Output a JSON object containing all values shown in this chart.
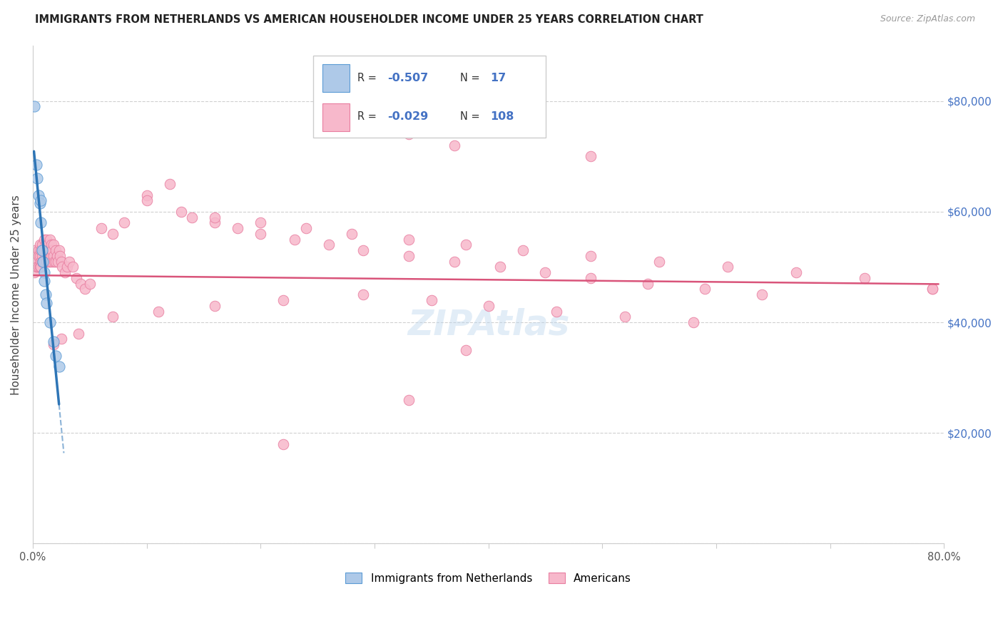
{
  "title": "IMMIGRANTS FROM NETHERLANDS VS AMERICAN HOUSEHOLDER INCOME UNDER 25 YEARS CORRELATION CHART",
  "source": "Source: ZipAtlas.com",
  "ylabel": "Householder Income Under 25 years",
  "xlim": [
    0.0,
    0.8
  ],
  "ylim": [
    0,
    90000
  ],
  "yticks": [
    0,
    20000,
    40000,
    60000,
    80000
  ],
  "ytick_labels_right": [
    "",
    "$20,000",
    "$40,000",
    "$60,000",
    "$80,000"
  ],
  "xtick_positions": [
    0.0,
    0.1,
    0.2,
    0.3,
    0.4,
    0.5,
    0.6,
    0.7,
    0.8
  ],
  "xtick_labels": [
    "0.0%",
    "",
    "",
    "",
    "",
    "",
    "",
    "",
    "80.0%"
  ],
  "blue_fill_color": "#aec9e8",
  "blue_edge_color": "#5b9bd5",
  "pink_fill_color": "#f7b8cb",
  "pink_edge_color": "#e87ea0",
  "blue_line_color": "#2e75b6",
  "pink_line_color": "#d9547a",
  "right_tick_color": "#4472c4",
  "legend_blue_r": "-0.507",
  "legend_blue_n": "17",
  "legend_pink_r": "-0.029",
  "legend_pink_n": "108",
  "watermark_text": "ZIPAtlas",
  "bottom_legend": [
    "Immigrants from Netherlands",
    "Americans"
  ],
  "blue_scatter_x": [
    0.001,
    0.003,
    0.004,
    0.005,
    0.006,
    0.007,
    0.007,
    0.008,
    0.009,
    0.01,
    0.01,
    0.011,
    0.012,
    0.015,
    0.018,
    0.02,
    0.023
  ],
  "blue_scatter_y": [
    79000,
    68500,
    66000,
    63000,
    61500,
    62000,
    58000,
    53000,
    51000,
    49000,
    47500,
    45000,
    43500,
    40000,
    36500,
    34000,
    32000
  ],
  "pink_scatter_x": [
    0.001,
    0.002,
    0.002,
    0.003,
    0.003,
    0.004,
    0.004,
    0.004,
    0.005,
    0.005,
    0.005,
    0.006,
    0.006,
    0.006,
    0.007,
    0.007,
    0.007,
    0.008,
    0.008,
    0.008,
    0.009,
    0.009,
    0.01,
    0.01,
    0.01,
    0.011,
    0.011,
    0.012,
    0.012,
    0.012,
    0.013,
    0.013,
    0.014,
    0.014,
    0.015,
    0.015,
    0.015,
    0.016,
    0.016,
    0.017,
    0.017,
    0.018,
    0.018,
    0.019,
    0.02,
    0.02,
    0.021,
    0.022,
    0.023,
    0.024,
    0.025,
    0.026,
    0.028,
    0.03,
    0.032,
    0.035,
    0.038,
    0.042,
    0.046,
    0.05,
    0.06,
    0.07,
    0.08,
    0.1,
    0.12,
    0.14,
    0.16,
    0.18,
    0.2,
    0.23,
    0.26,
    0.29,
    0.33,
    0.37,
    0.41,
    0.45,
    0.49,
    0.54,
    0.59,
    0.64,
    0.1,
    0.13,
    0.16,
    0.2,
    0.24,
    0.28,
    0.33,
    0.38,
    0.43,
    0.49,
    0.55,
    0.61,
    0.67,
    0.73,
    0.79,
    0.35,
    0.4,
    0.46,
    0.52,
    0.58,
    0.29,
    0.22,
    0.16,
    0.11,
    0.07,
    0.04,
    0.025,
    0.018
  ],
  "pink_scatter_y": [
    49000,
    53000,
    52000,
    51000,
    50000,
    52000,
    51000,
    50000,
    53000,
    52000,
    50000,
    54000,
    52000,
    50000,
    53000,
    51000,
    50000,
    54000,
    52000,
    51000,
    53000,
    51000,
    55000,
    53000,
    51000,
    54000,
    52000,
    55000,
    53000,
    51000,
    54000,
    52000,
    53000,
    51000,
    55000,
    53000,
    51000,
    54000,
    52000,
    53000,
    51000,
    54000,
    52000,
    51000,
    53000,
    51000,
    52000,
    51000,
    53000,
    52000,
    51000,
    50000,
    49000,
    50000,
    51000,
    50000,
    48000,
    47000,
    46000,
    47000,
    57000,
    56000,
    58000,
    63000,
    65000,
    59000,
    58000,
    57000,
    56000,
    55000,
    54000,
    53000,
    52000,
    51000,
    50000,
    49000,
    48000,
    47000,
    46000,
    45000,
    62000,
    60000,
    59000,
    58000,
    57000,
    56000,
    55000,
    54000,
    53000,
    52000,
    51000,
    50000,
    49000,
    48000,
    46000,
    44000,
    43000,
    42000,
    41000,
    40000,
    45000,
    44000,
    43000,
    42000,
    41000,
    38000,
    37000,
    36000
  ],
  "pink_outlier_x": [
    0.33,
    0.37,
    0.49,
    0.33,
    0.79,
    0.38,
    0.22
  ],
  "pink_outlier_y": [
    74000,
    72000,
    70000,
    26000,
    46000,
    35000,
    18000
  ]
}
